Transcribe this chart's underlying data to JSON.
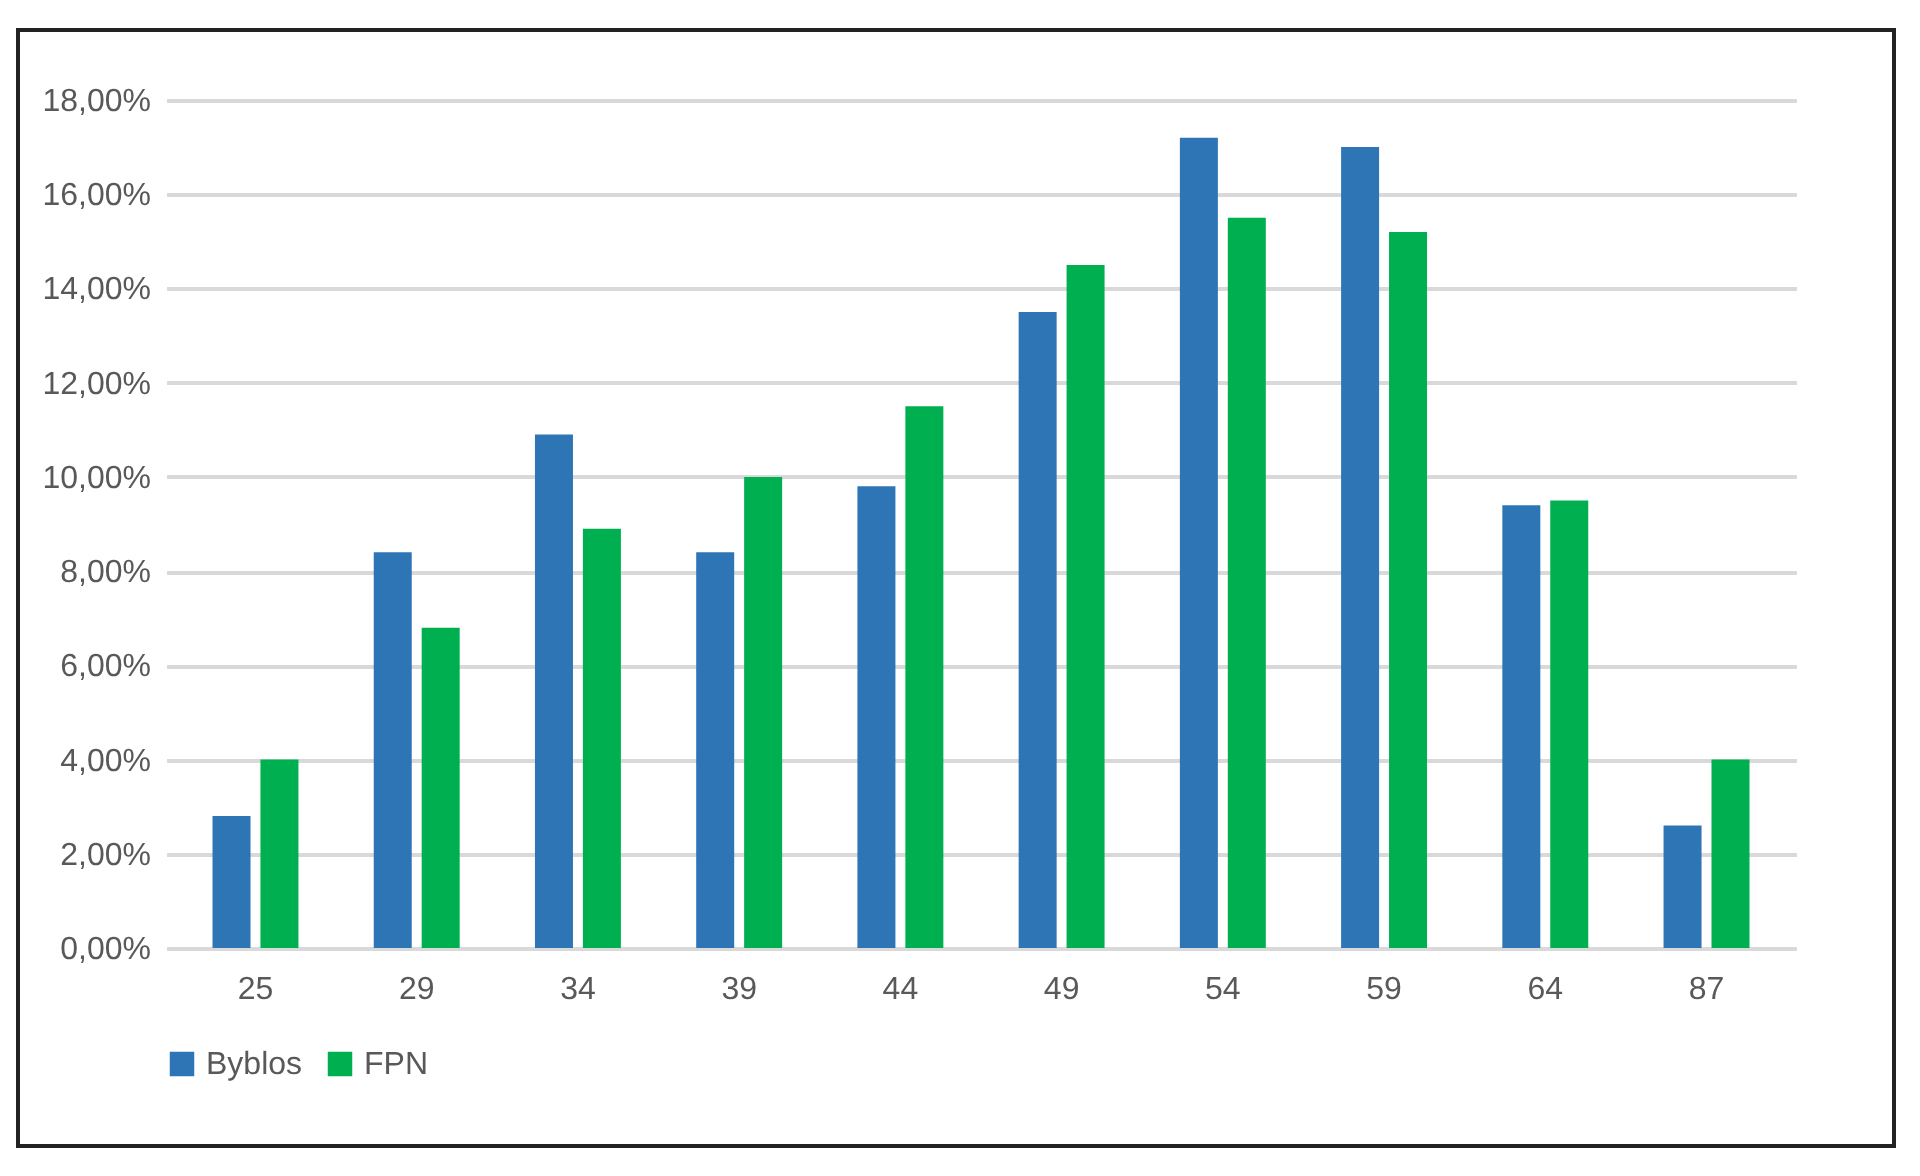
{
  "chart_data": {
    "type": "bar",
    "categories": [
      "25",
      "29",
      "34",
      "39",
      "44",
      "49",
      "54",
      "59",
      "64",
      "87"
    ],
    "series": [
      {
        "name": "Byblos",
        "color": "#2e75b6",
        "values": [
          2.8,
          8.4,
          10.9,
          8.4,
          9.8,
          13.5,
          17.2,
          17.0,
          9.4,
          2.6
        ]
      },
      {
        "name": "FPN",
        "color": "#00b050",
        "values": [
          4.0,
          6.8,
          8.9,
          10.0,
          11.5,
          14.5,
          15.5,
          15.2,
          9.5,
          4.0
        ]
      }
    ],
    "ylim": [
      0,
      18
    ],
    "yticks": [
      {
        "value": 0,
        "label": "0,00%"
      },
      {
        "value": 2,
        "label": "2,00%"
      },
      {
        "value": 4,
        "label": "4,00%"
      },
      {
        "value": 6,
        "label": "6,00%"
      },
      {
        "value": 8,
        "label": "8,00%"
      },
      {
        "value": 10,
        "label": "10,00%"
      },
      {
        "value": 12,
        "label": "12,00%"
      },
      {
        "value": 14,
        "label": "14,00%"
      },
      {
        "value": 16,
        "label": "16,00%"
      },
      {
        "value": 18,
        "label": "18,00%"
      }
    ],
    "grid": "y",
    "legend": "bottom"
  }
}
